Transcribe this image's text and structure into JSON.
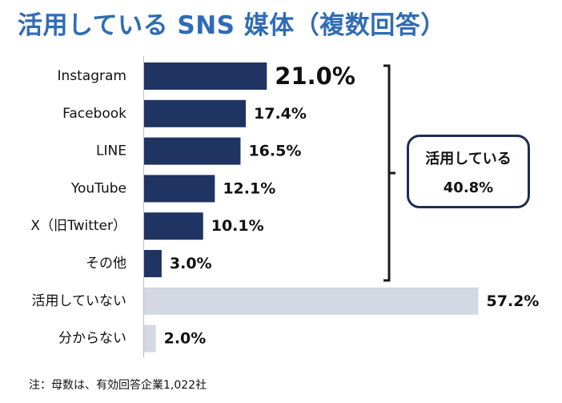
{
  "title": "活用している SNS 媒体（複数回答）",
  "note": "注：母数は、有効回答企業1,022社",
  "colors": {
    "title": "#2f6cb5",
    "bar_dark": "#1f3462",
    "bar_light": "#d3d8e2",
    "axis": "#bbbbbb",
    "bracket": "#1a1a1a"
  },
  "chart_data": {
    "type": "bar",
    "orientation": "horizontal",
    "title": "活用している SNS 媒体（複数回答）",
    "unit": "%",
    "categories": [
      "Instagram",
      "Facebook",
      "LINE",
      "YouTube",
      "X（旧Twitter）",
      "その他",
      "活用していない",
      "分からない"
    ],
    "values": [
      21.0,
      17.4,
      16.5,
      12.1,
      10.1,
      3.0,
      57.2,
      2.0
    ],
    "labels": [
      "21.0%",
      "17.4%",
      "16.5%",
      "12.1%",
      "10.1%",
      "3.0%",
      "57.2%",
      "2.0%"
    ],
    "group": [
      "using",
      "using",
      "using",
      "using",
      "using",
      "using",
      "not-using",
      "unknown"
    ],
    "grid": false,
    "legend": "none"
  },
  "bracket": {
    "label": "活用している",
    "value": "40.8%"
  }
}
